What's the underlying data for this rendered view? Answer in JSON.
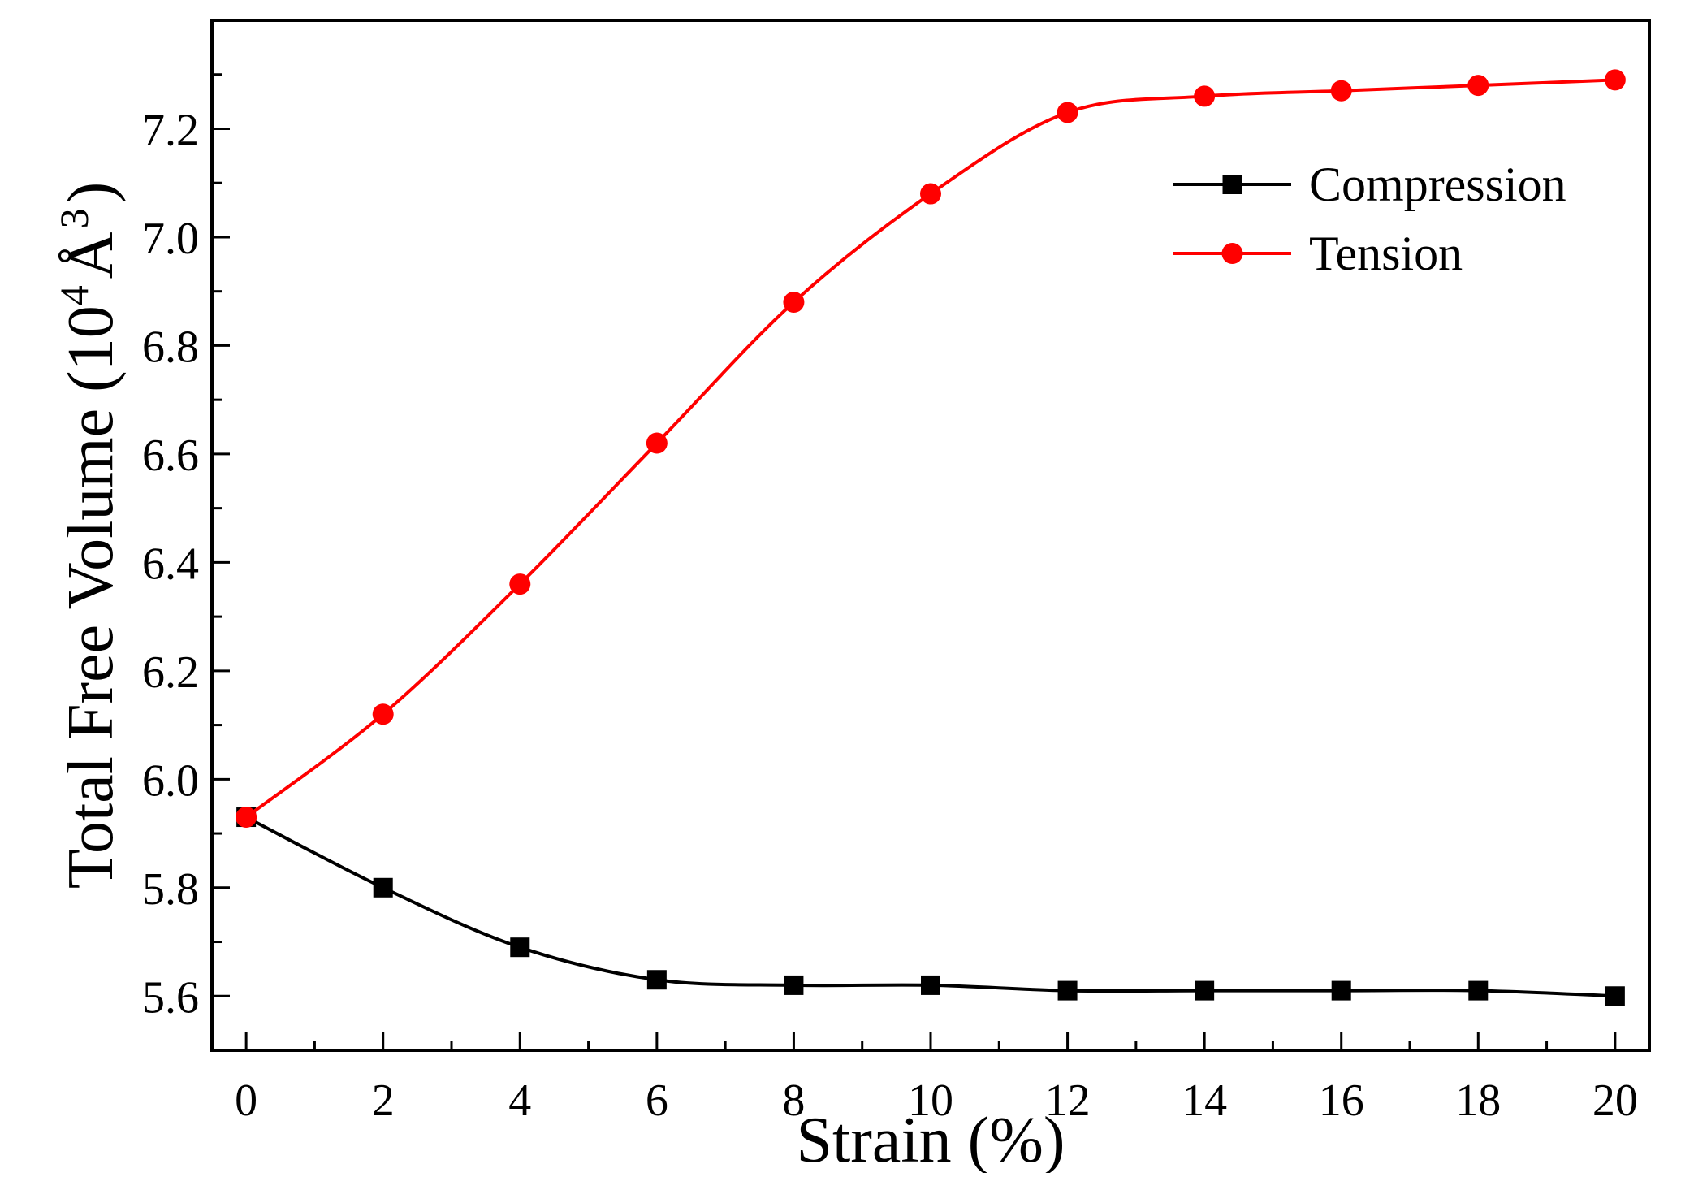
{
  "chart_data": {
    "type": "line",
    "title": "",
    "xlabel": "Strain (%)",
    "ylabel": {
      "prefix": "Total Free Volume (10",
      "exp1": "4",
      "unit": "Å",
      "exp2": "3",
      "suffix": ")"
    },
    "xlim": [
      -0.5,
      20.5
    ],
    "ylim": [
      5.5,
      7.4
    ],
    "xticks": [
      0,
      2,
      4,
      6,
      8,
      10,
      12,
      14,
      16,
      18,
      20
    ],
    "xtick_labels": [
      "0",
      "2",
      "4",
      "6",
      "8",
      "10",
      "12",
      "14",
      "16",
      "18",
      "20"
    ],
    "yticks": [
      5.6,
      5.8,
      6.0,
      6.2,
      6.4,
      6.6,
      6.8,
      7.0,
      7.2
    ],
    "ytick_labels": [
      "5.6",
      "5.8",
      "6.0",
      "6.2",
      "6.4",
      "6.6",
      "6.8",
      "7.0",
      "7.2"
    ],
    "legend_position": "top-right",
    "x": [
      0,
      2,
      4,
      6,
      8,
      10,
      12,
      14,
      16,
      18,
      20
    ],
    "series": [
      {
        "name": "Compression",
        "color": "#000000",
        "marker": "square",
        "values": [
          5.93,
          5.8,
          5.69,
          5.63,
          5.62,
          5.62,
          5.61,
          5.61,
          5.61,
          5.61,
          5.6
        ]
      },
      {
        "name": "Tension",
        "color": "#ff0000",
        "marker": "circle",
        "values": [
          5.93,
          6.12,
          6.36,
          6.62,
          6.88,
          7.08,
          7.23,
          7.26,
          7.27,
          7.28,
          7.29
        ]
      }
    ]
  }
}
